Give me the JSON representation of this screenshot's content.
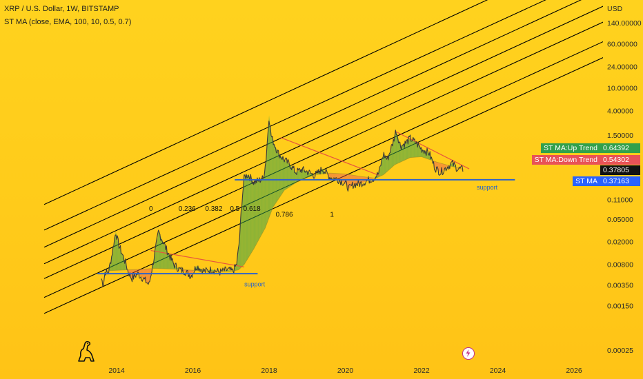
{
  "header": {
    "title": "XRP / U.S. Dollar, 1W, BITSTAMP",
    "indicator": "ST MA (close, EMA, 100, 10, 0.5, 0.7)"
  },
  "price_axis": {
    "currency": "USD",
    "labels": [
      "140.00000",
      "60.00000",
      "24.00000",
      "10.00000",
      "4.00000",
      "1.50000",
      "0.11000",
      "0.05000",
      "0.02000",
      "0.00800",
      "0.00350",
      "0.00150",
      "0.00025"
    ]
  },
  "badges": {
    "up_label": "ST MA:Up Trend",
    "up_value": "0.64392",
    "down_label": "ST MA:Down Trend",
    "down_value": "0.54302",
    "last_value": "0.37805",
    "stma_label": "ST MA",
    "stma_value": "0.37163"
  },
  "colors": {
    "background": "#ffcb1a",
    "up_trend": "#31a04c",
    "down_trend": "#e85257",
    "st_ma": "#2962ff",
    "support": "#2f63c9",
    "channel": "#000000",
    "candles": "#3a3a3a"
  },
  "icons": {
    "logo": "dinosaur-logo-icon",
    "flash": "flash-event-icon"
  },
  "chart_data": {
    "type": "line",
    "title": "XRP / U.S. Dollar, 1W, BITSTAMP",
    "scale": "log",
    "x_ticks": [
      "2014",
      "2016",
      "2018",
      "2020",
      "2022",
      "2024",
      "2026"
    ],
    "y_ticks": [
      140,
      60,
      24,
      10,
      4,
      1.5,
      0.11,
      0.05,
      0.02,
      0.008,
      0.0035,
      0.0015,
      0.00025
    ],
    "y_range": [
      0.00015,
      250
    ],
    "x_range": [
      2012.1,
      2027.3
    ],
    "price_series": {
      "name": "XRP/USD",
      "x": [
        2013.6,
        2013.65,
        2013.7,
        2013.78,
        2013.88,
        2013.93,
        2013.98,
        2014.05,
        2014.15,
        2014.25,
        2014.3,
        2014.4,
        2014.55,
        2014.7,
        2014.85,
        2015.0,
        2015.1,
        2015.3,
        2015.5,
        2015.65,
        2015.8,
        2015.95,
        2016.1,
        2016.3,
        2016.5,
        2016.7,
        2016.9,
        2017.05,
        2017.15,
        2017.22,
        2017.28,
        2017.35,
        2017.45,
        2017.6,
        2017.75,
        2017.85,
        2017.92,
        2018.0,
        2018.05,
        2018.12,
        2018.25,
        2018.4,
        2018.55,
        2018.7,
        2018.85,
        2019.0,
        2019.2,
        2019.4,
        2019.6,
        2019.8,
        2020.0,
        2020.1,
        2020.2,
        2020.4,
        2020.6,
        2020.75,
        2020.88,
        2021.0,
        2021.1,
        2021.25,
        2021.33,
        2021.45,
        2021.6,
        2021.7,
        2021.85,
        2022.0,
        2022.2,
        2022.35,
        2022.5,
        2022.65,
        2022.8,
        2022.95,
        2023.1
      ],
      "y": [
        0.0045,
        0.0035,
        0.006,
        0.0055,
        0.012,
        0.0195,
        0.03,
        0.018,
        0.012,
        0.008,
        0.006,
        0.0045,
        0.0055,
        0.0045,
        0.0035,
        0.012,
        0.03,
        0.015,
        0.008,
        0.0065,
        0.006,
        0.005,
        0.0075,
        0.006,
        0.0065,
        0.0058,
        0.0064,
        0.006,
        0.008,
        0.02,
        0.09,
        0.28,
        0.3,
        0.22,
        0.24,
        0.26,
        0.55,
        3.3,
        1.5,
        1.1,
        0.7,
        0.55,
        0.45,
        0.33,
        0.37,
        0.34,
        0.29,
        0.38,
        0.27,
        0.25,
        0.21,
        0.17,
        0.2,
        0.21,
        0.24,
        0.26,
        0.32,
        0.7,
        0.55,
        1.1,
        1.8,
        0.95,
        1.1,
        1.3,
        1.1,
        0.85,
        0.72,
        0.4,
        0.33,
        0.4,
        0.48,
        0.38,
        0.37
      ]
    },
    "st_ma_series": {
      "name": "ST MA",
      "x": [
        2013.8,
        2014.5,
        2015.0,
        2015.5,
        2016.0,
        2016.5,
        2017.0,
        2017.2,
        2017.35,
        2017.6,
        2017.9,
        2018.1,
        2018.4,
        2018.8,
        2019.2,
        2019.6,
        2020.0,
        2020.4,
        2020.8,
        2021.0,
        2021.3,
        2021.7,
        2022.0,
        2022.4,
        2022.8,
        2023.1
      ],
      "y": [
        0.0062,
        0.0065,
        0.0068,
        0.0066,
        0.0063,
        0.0061,
        0.006,
        0.0064,
        0.008,
        0.015,
        0.035,
        0.08,
        0.16,
        0.24,
        0.3,
        0.32,
        0.31,
        0.28,
        0.26,
        0.3,
        0.45,
        0.6,
        0.62,
        0.5,
        0.42,
        0.37163
      ]
    },
    "channel_lines": {
      "ratios": [
        1,
        0.786,
        0.618,
        0.5,
        0.382,
        0.236,
        0
      ],
      "points": [
        {
          "x1": 2012.1,
          "y1": 0.0011,
          "x2": 2027.3,
          "y2": 50
        },
        {
          "x1": 2012.1,
          "y1": 0.0021,
          "x2": 2027.3,
          "y2": 95
        },
        {
          "x1": 2012.1,
          "y1": 0.0045,
          "x2": 2027.3,
          "y2": 210
        },
        {
          "x1": 2012.1,
          "y1": 0.0082,
          "x2": 2027.3,
          "y2": 400
        },
        {
          "x1": 2012.1,
          "y1": 0.016,
          "x2": 2027.3,
          "y2": 780
        },
        {
          "x1": 2012.1,
          "y1": 0.032,
          "x2": 2027.3,
          "y2": 1500
        },
        {
          "x1": 2012.1,
          "y1": 0.09,
          "x2": 2027.3,
          "y2": 4500
        }
      ]
    },
    "fib_labels": [
      {
        "text": "0",
        "x": 2014.9,
        "y": 0.07
      },
      {
        "text": "0.236",
        "x": 2015.85,
        "y": 0.07
      },
      {
        "text": "0.382",
        "x": 2016.55,
        "y": 0.07
      },
      {
        "text": "0.5",
        "x": 2017.1,
        "y": 0.07
      },
      {
        "text": "0.618",
        "x": 2017.55,
        "y": 0.07
      },
      {
        "text": "0.786",
        "x": 2018.4,
        "y": 0.055
      },
      {
        "text": "1",
        "x": 2019.65,
        "y": 0.055
      }
    ],
    "support_lines": [
      {
        "x1": 2013.5,
        "x2": 2017.7,
        "y": 0.0055,
        "label": "support",
        "label_x": 2017.35,
        "label_y": 0.0033
      },
      {
        "x1": 2017.1,
        "x2": 2024.45,
        "y": 0.245,
        "label": "support",
        "label_x": 2023.45,
        "label_y": 0.165
      }
    ],
    "down_trend_lines": [
      {
        "x1": 2014.9,
        "y1": 0.014,
        "x2": 2017.35,
        "y2": 0.0072
      },
      {
        "x1": 2018.3,
        "y1": 1.35,
        "x2": 2020.9,
        "y2": 0.29
      },
      {
        "x1": 2021.3,
        "y1": 1.75,
        "x2": 2023.25,
        "y2": 0.38
      }
    ]
  }
}
